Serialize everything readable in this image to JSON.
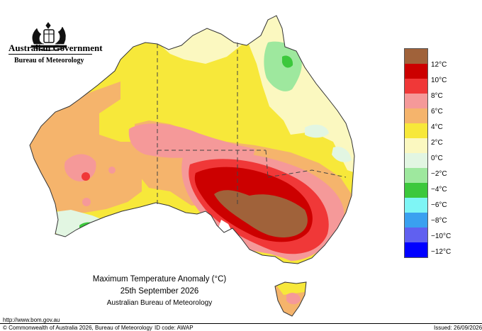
{
  "header": {
    "government": "Australian Government",
    "agency": "Bureau of Meteorology"
  },
  "legend": {
    "items": [
      {
        "label": "",
        "color": "#a0623a"
      },
      {
        "label": "12°C",
        "color": "#cc0000"
      },
      {
        "label": "10°C",
        "color": "#f03838"
      },
      {
        "label": "8°C",
        "color": "#f59999"
      },
      {
        "label": "6°C",
        "color": "#f5b46c"
      },
      {
        "label": "4°C",
        "color": "#f7e83a"
      },
      {
        "label": "2°C",
        "color": "#fbf8c0"
      },
      {
        "label": "0°C",
        "color": "#e2f6e2"
      },
      {
        "label": "−2°C",
        "color": "#9ee89e"
      },
      {
        "label": "−4°C",
        "color": "#3cc83c"
      },
      {
        "label": "−6°C",
        "color": "#7ef5f5"
      },
      {
        "label": "−8°C",
        "color": "#3aa0f0"
      },
      {
        "label": "−10°C",
        "color": "#6060f0"
      },
      {
        "label": "−12°C",
        "color": "#0000ff"
      }
    ]
  },
  "caption": {
    "title": "Maximum Temperature Anomaly (°C)",
    "date": "25th September 2026",
    "source": "Australian Bureau of Meteorology"
  },
  "footer": {
    "url": "http://www.bom.gov.au",
    "copyright": "© Commonwealth of Australia 2026, Bureau of Meteorology",
    "id_code": "ID code: AWAP",
    "issued": "Issued: 26/09/2026"
  }
}
